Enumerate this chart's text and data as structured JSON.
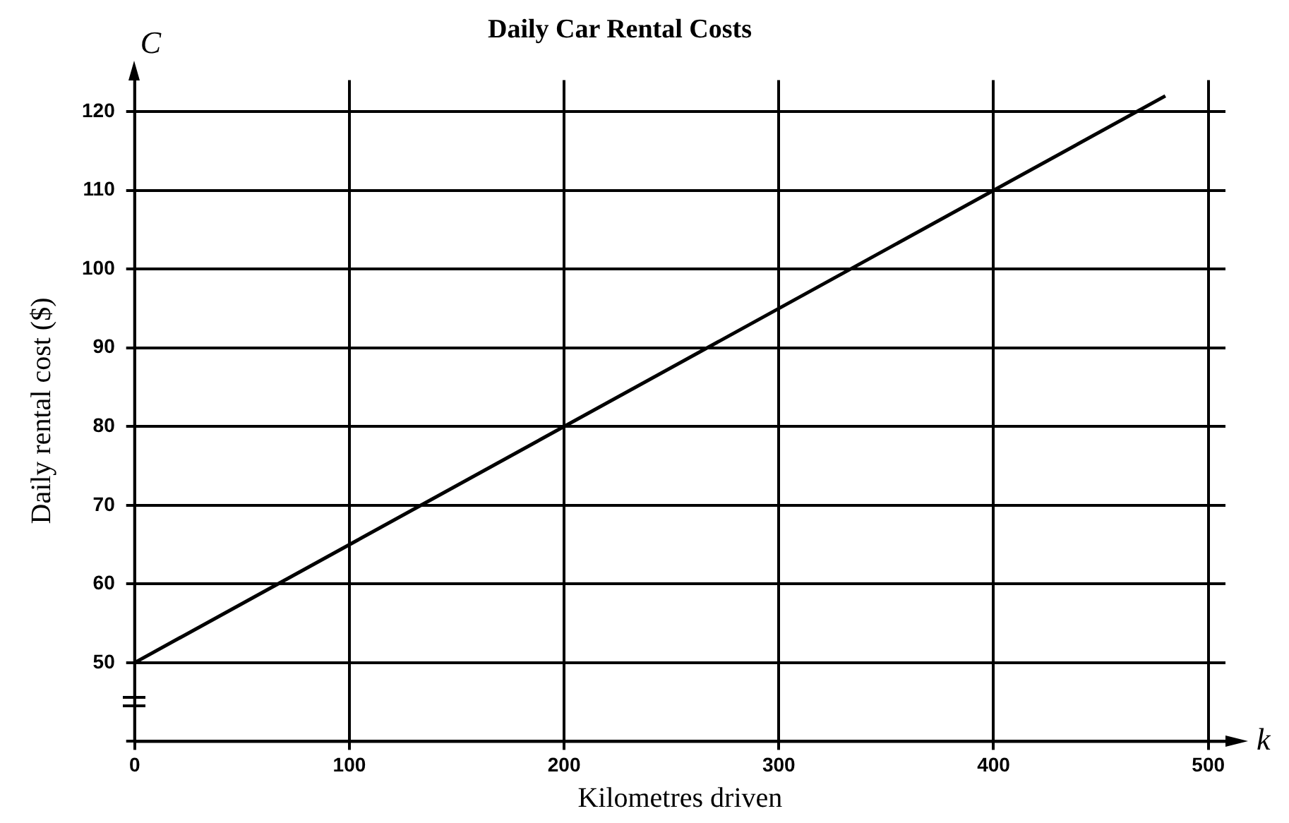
{
  "chart_data": {
    "type": "line",
    "title": "Daily Car Rental Costs",
    "xlabel": "Kilometres driven",
    "ylabel": "Daily rental cost ($)",
    "annotations": [
      "C",
      "k"
    ],
    "series": [
      {
        "color": "#000000",
        "x": [
          0,
          480
        ],
        "values": [
          50,
          122
        ]
      }
    ],
    "xlim": [
      0,
      508
    ],
    "xticks": [
      0,
      100,
      200,
      300,
      400,
      500
    ],
    "ylim": [
      40,
      124
    ],
    "yticks": [
      {
        "value": 40,
        "label": null
      },
      50,
      60,
      70,
      80,
      90,
      100,
      110,
      120
    ],
    "grid": true,
    "legend": false,
    "marker": "none",
    "line_style": "solid"
  }
}
